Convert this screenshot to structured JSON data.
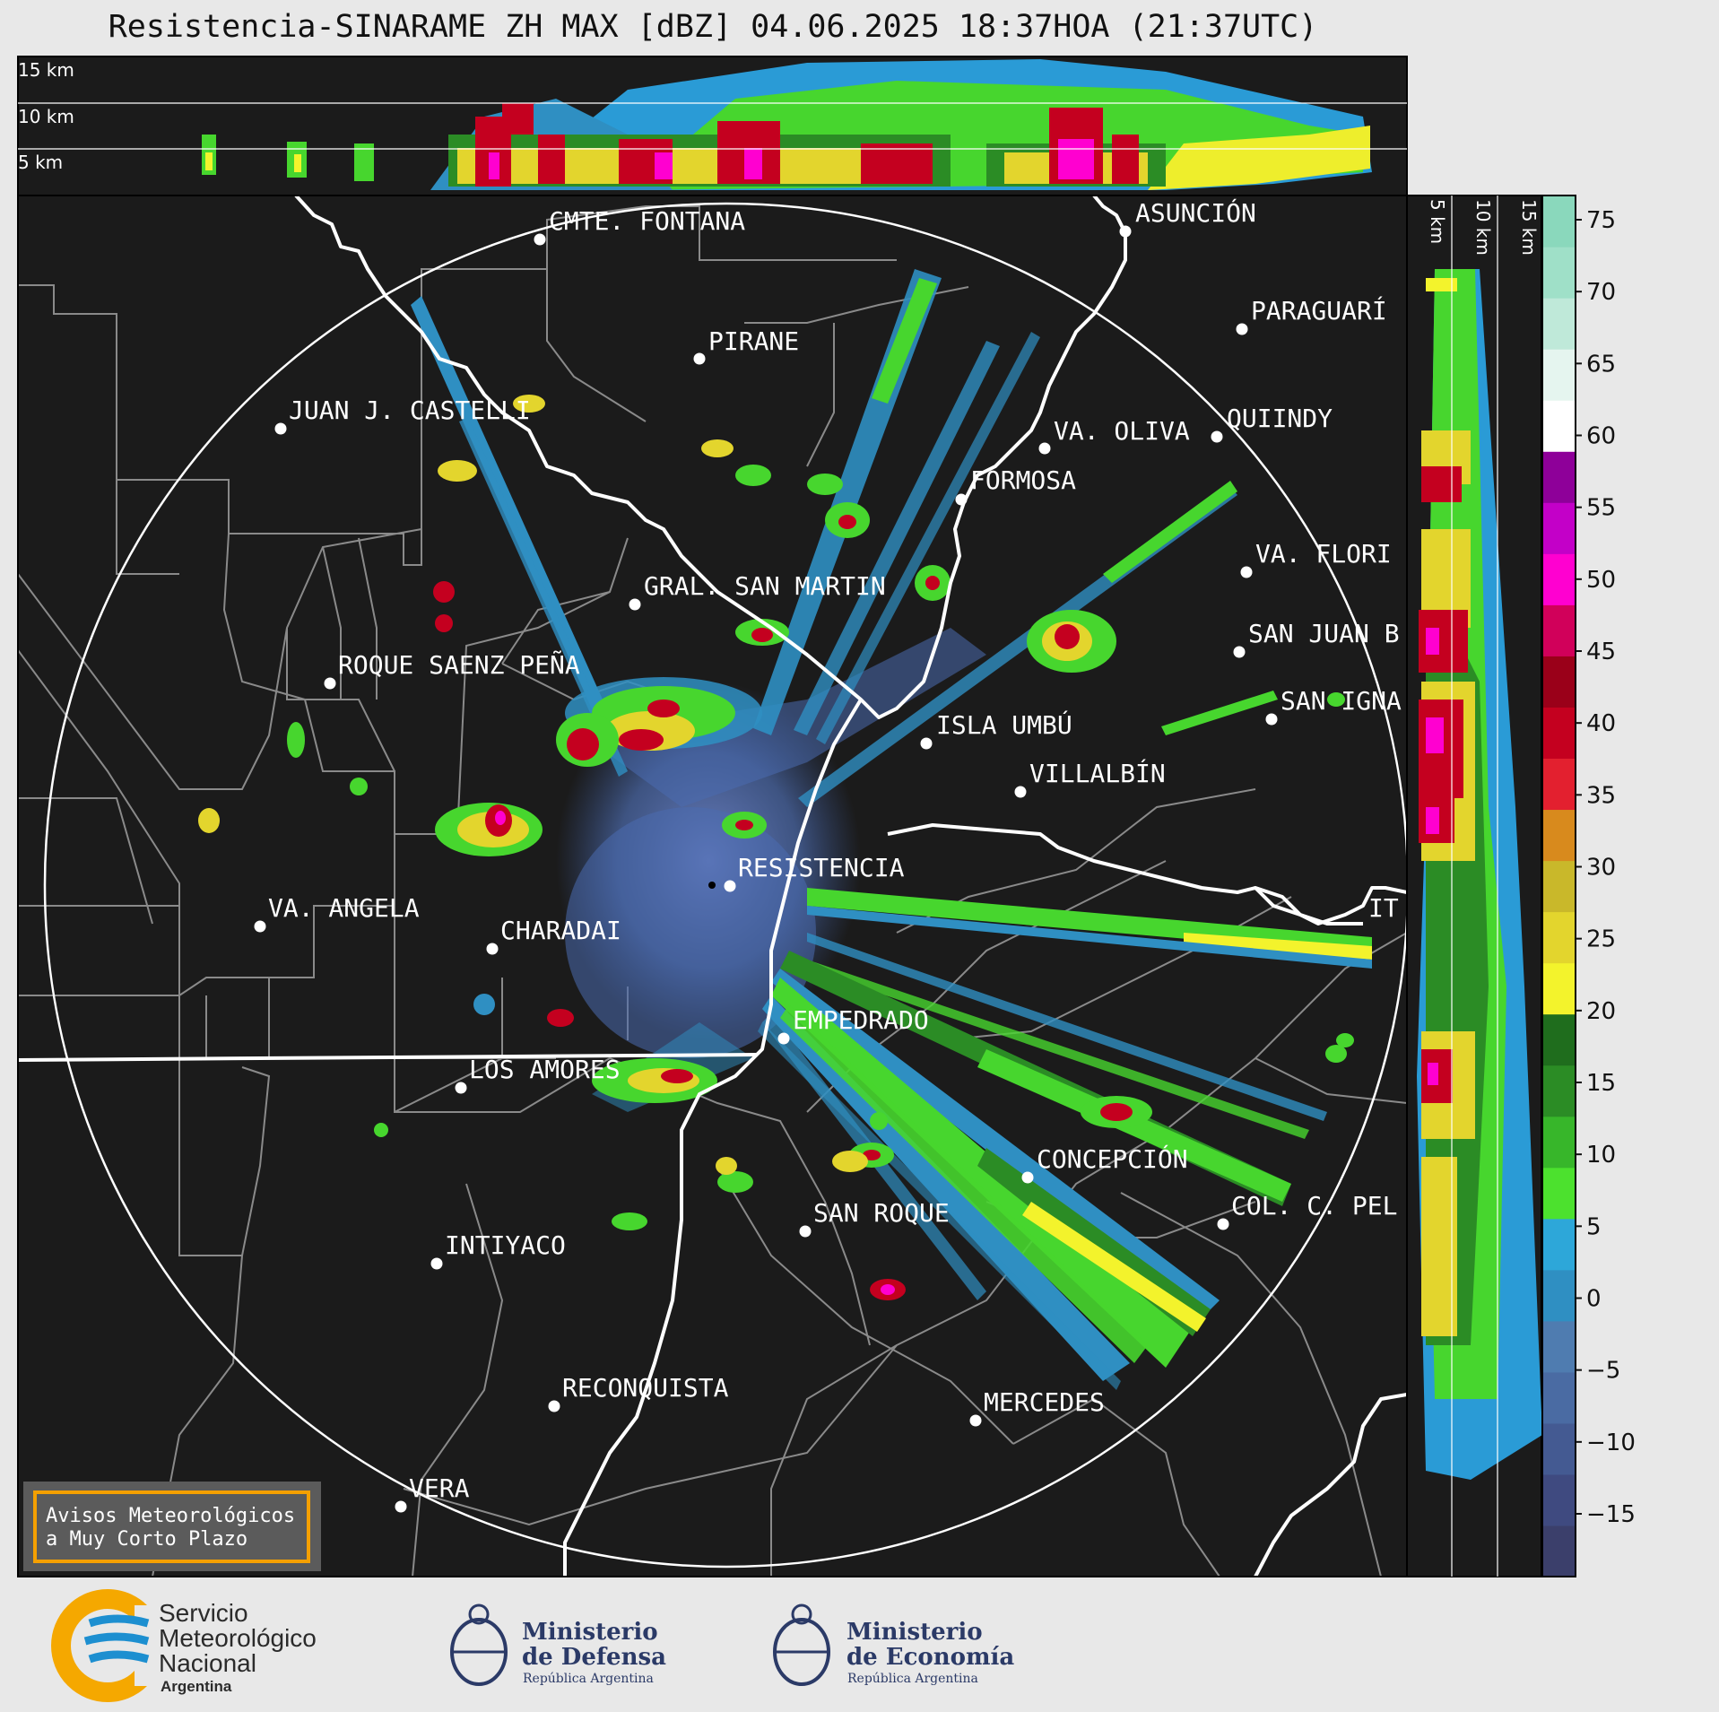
{
  "title": "Resistencia-SINARAME ZH MAX [dBZ] 04.06.2025 18:37HOA (21:37UTC)",
  "top_panel": {
    "height_labels": [
      "15 km",
      "10 km",
      "5 km"
    ]
  },
  "side_panel": {
    "height_labels": [
      "5 km",
      "10 km",
      "15 km"
    ]
  },
  "places": [
    {
      "name": "CMTE. FONTANA"
    },
    {
      "name": "ASUNCIÓN"
    },
    {
      "name": "PARAGUARÍ"
    },
    {
      "name": "PIRANE"
    },
    {
      "name": "JUAN J. CASTELLI"
    },
    {
      "name": "VA. OLIVA"
    },
    {
      "name": "QUIINDY"
    },
    {
      "name": "FORMOSA"
    },
    {
      "name": "VA. FLORI"
    },
    {
      "name": "GRAL. SAN MARTIN"
    },
    {
      "name": "SAN JUAN B"
    },
    {
      "name": "ROQUE SAENZ PEÑA"
    },
    {
      "name": "SAN IGNA"
    },
    {
      "name": "ISLA UMBÚ"
    },
    {
      "name": "VILLALBÍN"
    },
    {
      "name": "RESISTENCIA"
    },
    {
      "name": "VA. ANGELA"
    },
    {
      "name": "CHARADAI"
    },
    {
      "name": "IT"
    },
    {
      "name": "EMPEDRADO"
    },
    {
      "name": "LOS AMORES"
    },
    {
      "name": "CONCEPCIÓN"
    },
    {
      "name": "SAN ROQUE"
    },
    {
      "name": "COL. C. PEL"
    },
    {
      "name": "INTIYACO"
    },
    {
      "name": "RECONQUISTA"
    },
    {
      "name": "MERCEDES"
    },
    {
      "name": "VERA"
    }
  ],
  "colorbar": {
    "unit": "dBZ",
    "ticks": [
      "75",
      "70",
      "65",
      "60",
      "55",
      "50",
      "45",
      "40",
      "35",
      "30",
      "25",
      "20",
      "15",
      "10",
      "5",
      "0",
      "−5",
      "−10",
      "−15"
    ],
    "colors": [
      "#3b3f6b",
      "#3f4a80",
      "#445a92",
      "#4a6ba3",
      "#4f7cb0",
      "#2f8fc2",
      "#2da7d9",
      "#4ce12e",
      "#37b62a",
      "#2b8c25",
      "#1f6d1d",
      "#f3f32c",
      "#e3d52d",
      "#c9b82a",
      "#d88a1d",
      "#e3202f",
      "#c4001f",
      "#9a0019",
      "#d1005a",
      "#ff00d0",
      "#c300c8",
      "#8e0099",
      "#ffffff",
      "#e5f5ef",
      "#bfe9d9",
      "#9fe0c8",
      "#8ad8bc"
    ]
  },
  "warning_box": {
    "line1": "Avisos Meteorológicos",
    "line2": "a Muy Corto Plazo"
  },
  "logos": {
    "smn": {
      "line1": "Servicio",
      "line2": "Meteorológico",
      "line3": "Nacional",
      "line4": "Argentina"
    },
    "defensa": {
      "line1": "Ministerio",
      "line2": "de Defensa",
      "line3": "República Argentina"
    },
    "economia": {
      "line1": "Ministerio",
      "line2": "de Economía",
      "line3": "República Argentina"
    },
    "brand_colors": {
      "smn_orange": "#f5a800",
      "smn_blue": "#1d8fd0",
      "ministry_navy": "#2b3a67"
    }
  }
}
